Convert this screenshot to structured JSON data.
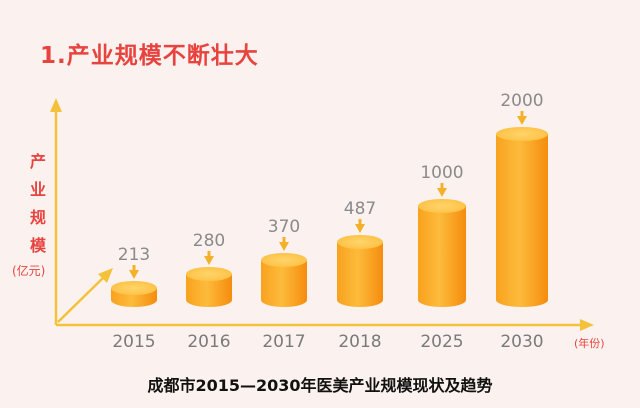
{
  "section_title": "1.产业规模不断壮大",
  "caption": "成都市2015—2030年医美产业规模现状及趋势",
  "colors": {
    "accent": "#e8443f",
    "bar_light": "#fdbd3e",
    "bar_dark": "#f79412",
    "axis": "#f3c23a",
    "background": "#fbf2ef"
  },
  "chart_data": {
    "type": "bar",
    "title": "1.产业规模不断壮大",
    "ylabel_chars": [
      "产",
      "业",
      "规",
      "模"
    ],
    "yunit": "(亿元)",
    "xunit": "(年份)",
    "categories": [
      "2015",
      "2016",
      "2017",
      "2018",
      "2025",
      "2030"
    ],
    "values": [
      213,
      280,
      370,
      487,
      1000,
      2000
    ],
    "data_labels": [
      "213",
      "280",
      "370",
      "487",
      "1000",
      "2000"
    ],
    "grid": false,
    "legend": "none"
  }
}
